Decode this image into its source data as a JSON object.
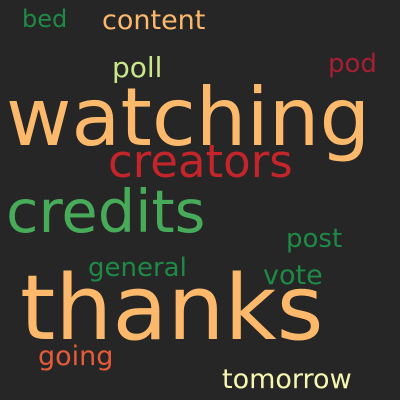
{
  "colors": {
    "background": "#262626",
    "orange": "#FDB96B",
    "red": "#C4252A",
    "dark_red": "#A61E33",
    "green": "#47AB5A",
    "dark_green": "#1E8A45",
    "light_green": "#C8E88A",
    "light_yellow": "#F6F7B0",
    "orange_red": "#E65B3A"
  },
  "words": {
    "bed": "bed",
    "content": "content",
    "pod": "pod",
    "poll": "poll",
    "watching": "watching",
    "creators": "creators",
    "credits": "credits",
    "post": "post",
    "general": "general",
    "vote": "vote",
    "thanks": "thanks",
    "going": "going",
    "tomorrow": "tomorrow"
  }
}
